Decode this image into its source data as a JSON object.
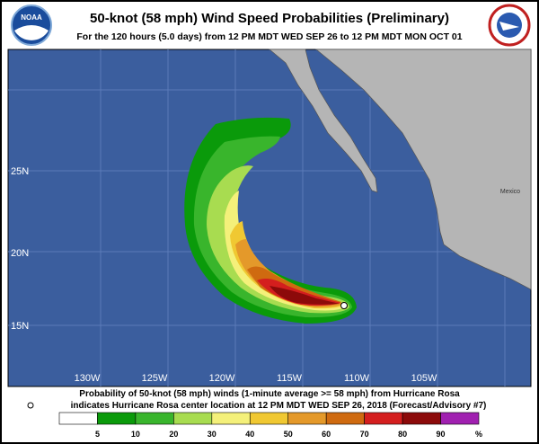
{
  "header": {
    "title": "50-knot (58 mph) Wind Speed Probabilities (Preliminary)",
    "subtitle": "For the 120 hours (5.0 days) from 12 PM MDT WED SEP 26 to 12 PM MDT MON OCT 01",
    "logo_text": "NOAA"
  },
  "map": {
    "latitude_labels": [
      "25N",
      "20N",
      "15N"
    ],
    "longitude_labels": [
      "130W",
      "125W",
      "120W",
      "115W",
      "110W",
      "105W"
    ],
    "place_label": "Mexico"
  },
  "footer": {
    "line1": "Probability of 50-knot (58 mph) winds (1-minute average >= 58 mph) from Hurricane Rosa",
    "line2": "indicates Hurricane Rosa center location at 12 PM MDT WED SEP 26, 2018 (Forecast/Advisory #7)"
  },
  "legend": {
    "labels": [
      "5",
      "10",
      "20",
      "30",
      "40",
      "50",
      "60",
      "70",
      "80",
      "90"
    ],
    "unit": "%",
    "colors": [
      "#ffffff",
      "#0a9a0a",
      "#39b52c",
      "#a8dc50",
      "#f4f07a",
      "#f0c832",
      "#e4992a",
      "#cf6a10",
      "#d41e1e",
      "#8c0a0a",
      "#a020b0"
    ]
  }
}
